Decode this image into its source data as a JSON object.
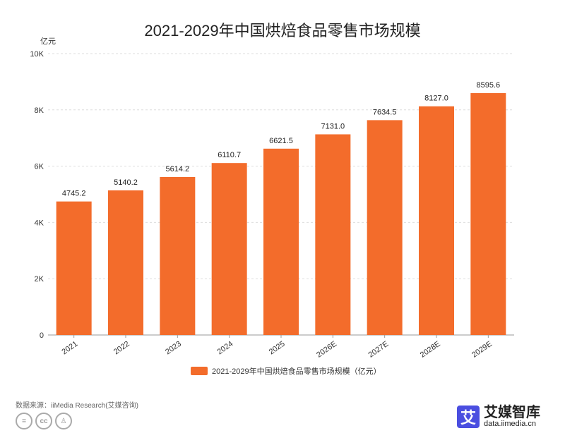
{
  "chart_data": {
    "type": "bar",
    "title": "2021-2029年中国烘焙食品零售市场规模",
    "ylabel": "亿元",
    "categories": [
      "2021",
      "2022",
      "2023",
      "2024",
      "2025",
      "2026E",
      "2027E",
      "2028E",
      "2029E"
    ],
    "series": [
      {
        "name": "2021-2029年中国烘焙食品零售市场规模（亿元）",
        "values": [
          4745.2,
          5140.2,
          5614.2,
          6110.7,
          6621.5,
          7131.0,
          7634.5,
          8127.0,
          8595.6
        ]
      }
    ],
    "data_labels": [
      "4745.2",
      "5140.2",
      "5614.2",
      "6110.7",
      "6621.5",
      "7131.0",
      "7634.5",
      "8127.0",
      "8595.6"
    ],
    "ylim": [
      0,
      10000
    ],
    "yticks": [
      0,
      2000,
      4000,
      6000,
      8000,
      10000
    ],
    "ytick_labels": [
      "0",
      "2K",
      "4K",
      "6K",
      "8K",
      "10K"
    ],
    "grid": true,
    "legend_position": "bottom",
    "bar_color": "#f36c2b"
  },
  "footer": {
    "source": "数据来源：iiMedia Research(艾媒咨询)",
    "cc_icons": [
      "nd-icon",
      "cc-icon",
      "by-icon"
    ],
    "brand_logo_char": "艾",
    "brand_name": "艾媒智库",
    "brand_url": "data.iimedia.cn"
  }
}
